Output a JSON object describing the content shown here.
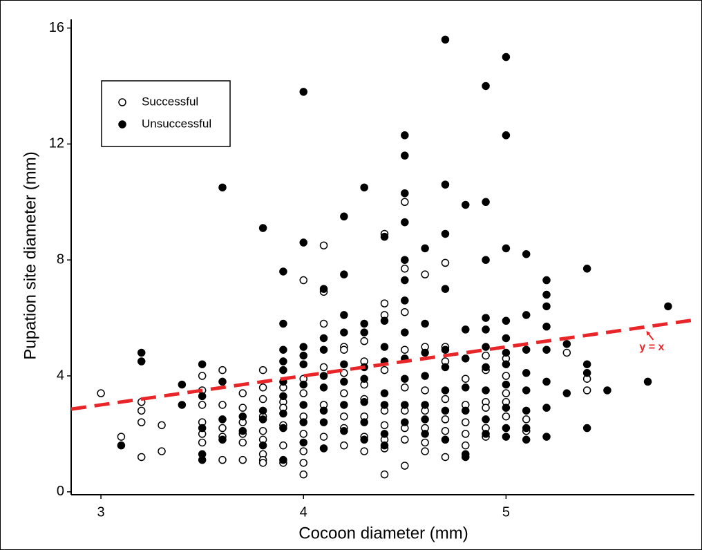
{
  "chart_data": {
    "type": "scatter",
    "x_label": "Cocoon diameter (mm)",
    "y_label": "Pupation site diameter (mm)",
    "xlim": [
      2.853,
      5.93
    ],
    "xticks": [
      3,
      4,
      5
    ],
    "ylim": [
      -0.1,
      16.3
    ],
    "yticks": [
      0,
      4,
      8,
      12,
      16
    ],
    "grid": false,
    "legend": "upper left",
    "reference_line": {
      "slope": 1,
      "intercept": 0,
      "color": "#e8262a",
      "style": "dashed"
    },
    "annotations": [
      {
        "text": "y = x",
        "x": 5.72,
        "y": 4.98,
        "color": "#e8262a"
      }
    ],
    "series": [
      {
        "name": "Successful",
        "color": "#000000",
        "marker": "open",
        "x": [
          3.0,
          3.1,
          3.2,
          3.2,
          3.2,
          3.2,
          3.3,
          3.3,
          3.5,
          3.5,
          3.5,
          3.5,
          3.5,
          3.5,
          3.6,
          3.6,
          3.6,
          3.6,
          3.6,
          3.7,
          3.7,
          3.7,
          3.7,
          3.7,
          3.7,
          3.8,
          3.8,
          3.8,
          3.8,
          3.8,
          3.8,
          3.8,
          3.8,
          3.8,
          3.9,
          3.9,
          3.9,
          3.9,
          3.9,
          3.9,
          4.0,
          4.0,
          4.0,
          4.0,
          4.0,
          4.0,
          4.0,
          4.0,
          4.1,
          4.1,
          4.1,
          4.1,
          4.1,
          4.1,
          4.2,
          4.2,
          4.2,
          4.2,
          4.2,
          4.2,
          4.2,
          4.3,
          4.3,
          4.3,
          4.3,
          4.3,
          4.3,
          4.3,
          4.4,
          4.4,
          4.4,
          4.4,
          4.4,
          4.4,
          4.4,
          4.4,
          4.4,
          4.5,
          4.5,
          4.5,
          4.5,
          4.5,
          4.5,
          4.5,
          4.5,
          4.5,
          4.6,
          4.6,
          4.6,
          4.6,
          4.6,
          4.6,
          4.6,
          4.7,
          4.7,
          4.7,
          4.7,
          4.7,
          4.7,
          4.7,
          4.8,
          4.8,
          4.8,
          4.8,
          4.8,
          4.9,
          4.9,
          4.9,
          4.9,
          4.9,
          4.9,
          5.0,
          5.0,
          5.0,
          5.0,
          5.0,
          5.1,
          5.1,
          5.3,
          5.4,
          5.4
        ],
        "values": [
          3.4,
          1.9,
          3.1,
          2.8,
          2.4,
          1.2,
          2.3,
          1.4,
          4.0,
          3.5,
          3.0,
          2.4,
          2.0,
          1.7,
          4.2,
          3.0,
          2.2,
          1.9,
          1.1,
          3.4,
          2.9,
          2.4,
          2.0,
          1.7,
          1.1,
          4.2,
          3.6,
          3.2,
          2.6,
          2.1,
          1.8,
          1.3,
          1.1,
          1.0,
          3.6,
          3.1,
          2.9,
          2.3,
          1.6,
          1.0,
          7.3,
          3.9,
          3.4,
          2.6,
          2.0,
          1.4,
          1.0,
          0.6,
          8.5,
          6.9,
          5.8,
          4.3,
          3.0,
          1.9,
          5.0,
          4.9,
          4.1,
          3.4,
          2.6,
          2.2,
          1.6,
          5.2,
          4.5,
          3.7,
          3.2,
          2.6,
          1.9,
          1.4,
          8.9,
          6.5,
          6.1,
          4.2,
          2.8,
          2.3,
          1.8,
          1.5,
          0.6,
          10.0,
          7.7,
          6.2,
          4.9,
          3.6,
          2.8,
          2.2,
          1.8,
          0.9,
          7.5,
          5.0,
          3.5,
          2.8,
          2.2,
          1.7,
          1.4,
          7.9,
          5.0,
          4.5,
          3.2,
          2.5,
          2.1,
          1.2,
          3.9,
          3.0,
          2.4,
          2.0,
          1.6,
          4.7,
          4.2,
          3.1,
          2.9,
          2.2,
          1.9,
          4.6,
          4.0,
          3.4,
          3.1,
          2.6,
          2.5,
          2.1,
          4.8,
          3.9,
          3.5
        ]
      },
      {
        "name": "Unsuccessful",
        "color": "#000000",
        "marker": "filled",
        "x": [
          3.1,
          3.2,
          3.2,
          3.4,
          3.4,
          3.5,
          3.5,
          3.5,
          3.5,
          3.5,
          3.6,
          3.6,
          3.6,
          3.6,
          3.7,
          3.7,
          3.8,
          3.8,
          3.8,
          3.8,
          3.9,
          3.9,
          3.9,
          3.9,
          3.9,
          3.9,
          3.9,
          3.9,
          3.9,
          3.9,
          4.0,
          4.0,
          4.0,
          4.0,
          4.0,
          4.0,
          4.0,
          4.0,
          4.0,
          4.1,
          4.1,
          4.1,
          4.1,
          4.1,
          4.1,
          4.1,
          4.1,
          4.2,
          4.2,
          4.2,
          4.2,
          4.2,
          4.2,
          4.2,
          4.2,
          4.3,
          4.3,
          4.3,
          4.3,
          4.3,
          4.3,
          4.3,
          4.3,
          4.4,
          4.4,
          4.4,
          4.4,
          4.4,
          4.4,
          4.4,
          4.4,
          4.5,
          4.5,
          4.5,
          4.5,
          4.5,
          4.5,
          4.5,
          4.5,
          4.5,
          4.5,
          4.5,
          4.5,
          4.6,
          4.6,
          4.6,
          4.6,
          4.6,
          4.6,
          4.6,
          4.7,
          4.7,
          4.7,
          4.7,
          4.7,
          4.7,
          4.7,
          4.7,
          4.7,
          4.8,
          4.8,
          4.8,
          4.8,
          4.8,
          4.8,
          4.8,
          4.9,
          4.9,
          4.9,
          4.9,
          4.9,
          4.9,
          4.9,
          4.9,
          4.9,
          4.9,
          5.0,
          5.0,
          5.0,
          5.0,
          5.0,
          5.0,
          5.0,
          5.0,
          5.0,
          5.0,
          5.0,
          5.1,
          5.1,
          5.1,
          5.1,
          5.1,
          5.1,
          5.1,
          5.1,
          5.2,
          5.2,
          5.2,
          5.2,
          5.2,
          5.2,
          5.2,
          5.2,
          5.3,
          5.3,
          5.4,
          5.4,
          5.4,
          5.4,
          5.5,
          5.7,
          5.8
        ],
        "values": [
          1.6,
          4.8,
          4.5,
          3.7,
          3.0,
          4.4,
          3.3,
          2.2,
          1.3,
          1.1,
          10.5,
          3.8,
          2.5,
          1.8,
          2.6,
          2.1,
          9.1,
          2.8,
          2.5,
          1.6,
          7.6,
          5.8,
          4.9,
          4.5,
          4.2,
          3.8,
          3.3,
          2.7,
          2.2,
          1.1,
          13.8,
          8.6,
          5.0,
          4.7,
          4.4,
          3.7,
          3.0,
          2.4,
          1.7,
          7.0,
          5.3,
          4.9,
          4.0,
          3.6,
          2.8,
          2.4,
          1.5,
          9.5,
          7.5,
          6.1,
          5.5,
          4.4,
          3.8,
          3.0,
          2.1,
          10.5,
          5.8,
          5.5,
          4.3,
          3.9,
          3.1,
          2.4,
          1.8,
          8.8,
          5.9,
          5.0,
          4.5,
          3.4,
          3.0,
          2.0,
          1.6,
          12.3,
          11.6,
          10.3,
          9.3,
          8.0,
          7.3,
          6.6,
          5.5,
          4.6,
          3.9,
          3.0,
          2.4,
          8.4,
          5.8,
          4.8,
          4.0,
          3.0,
          2.5,
          2.0,
          15.6,
          10.6,
          8.9,
          7.0,
          4.9,
          4.3,
          3.5,
          2.8,
          1.8,
          9.9,
          5.6,
          4.6,
          3.6,
          2.8,
          1.3,
          1.2,
          14.0,
          10.0,
          8.0,
          6.0,
          5.6,
          5.0,
          4.3,
          3.5,
          2.5,
          2.0,
          15.0,
          12.3,
          8.4,
          5.9,
          5.3,
          4.8,
          4.4,
          3.7,
          2.9,
          2.2,
          1.9,
          8.2,
          6.1,
          4.9,
          4.1,
          3.5,
          2.8,
          2.2,
          1.8,
          7.3,
          6.8,
          6.4,
          5.7,
          4.9,
          3.8,
          2.9,
          1.9,
          5.1,
          3.4,
          7.7,
          4.4,
          4.1,
          2.2,
          3.5,
          3.8,
          6.4
        ]
      }
    ]
  }
}
